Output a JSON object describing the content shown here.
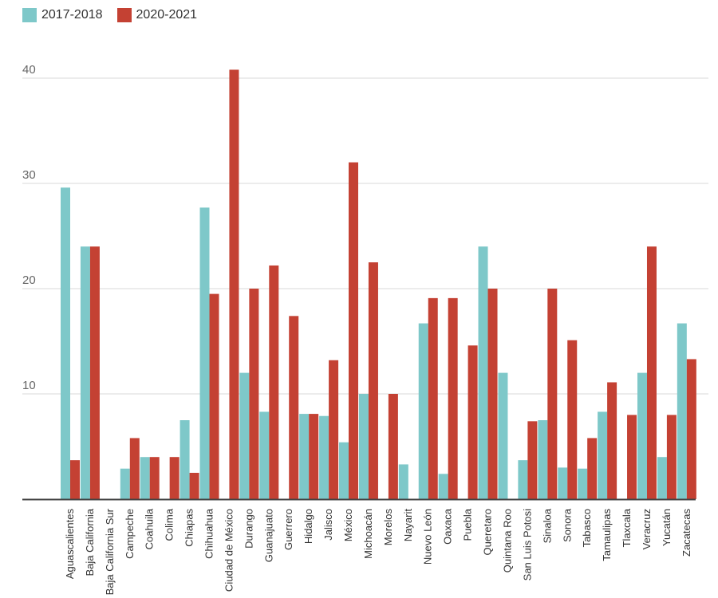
{
  "chart_data": {
    "type": "bar",
    "title": "",
    "xlabel": "",
    "ylabel": "",
    "ylim": [
      0,
      42
    ],
    "yticks": [
      10,
      20,
      30,
      40
    ],
    "grid": true,
    "legend_position": "top-left",
    "categories": [
      "Aguascalientes",
      "Baja California",
      "Baja California Sur",
      "Campeche",
      "Coahuila",
      "Colima",
      "Chiapas",
      "Chihuahua",
      "Ciudad de México",
      "Durango",
      "Guanajuato",
      "Guerrero",
      "Hidalgo",
      "Jalisco",
      "México",
      "Michoacán",
      "Morelos",
      "Nayarit",
      "Nuevo León",
      "Oaxaca",
      "Puebla",
      "Queretaro",
      "Quintana Roo",
      "San Luis Potosi",
      "Sinaloa",
      "Sonora",
      "Tabasco",
      "Tamaulipas",
      "Tlaxcala",
      "Veracruz",
      "Yucatán",
      "Zacatecas"
    ],
    "series": [
      {
        "name": "2017-2018",
        "color": "#7ec8c9",
        "values": [
          29.6,
          24,
          0,
          2.9,
          4,
          0,
          7.5,
          27.7,
          0,
          12,
          8.3,
          0,
          8.1,
          7.9,
          5.4,
          10,
          0,
          3.3,
          16.7,
          2.4,
          0,
          24,
          12,
          3.7,
          7.5,
          3,
          2.9,
          8.3,
          0,
          12,
          4,
          16.7
        ]
      },
      {
        "name": "2020-2021",
        "color": "#c44133",
        "values": [
          3.7,
          24,
          0,
          5.8,
          4,
          4,
          2.5,
          19.5,
          40.8,
          20,
          22.2,
          17.4,
          8.1,
          13.2,
          32,
          22.5,
          10,
          0,
          19.1,
          19.1,
          14.6,
          20,
          0,
          7.4,
          20,
          15.1,
          5.8,
          11.1,
          8,
          24,
          8,
          13.3
        ]
      }
    ]
  }
}
